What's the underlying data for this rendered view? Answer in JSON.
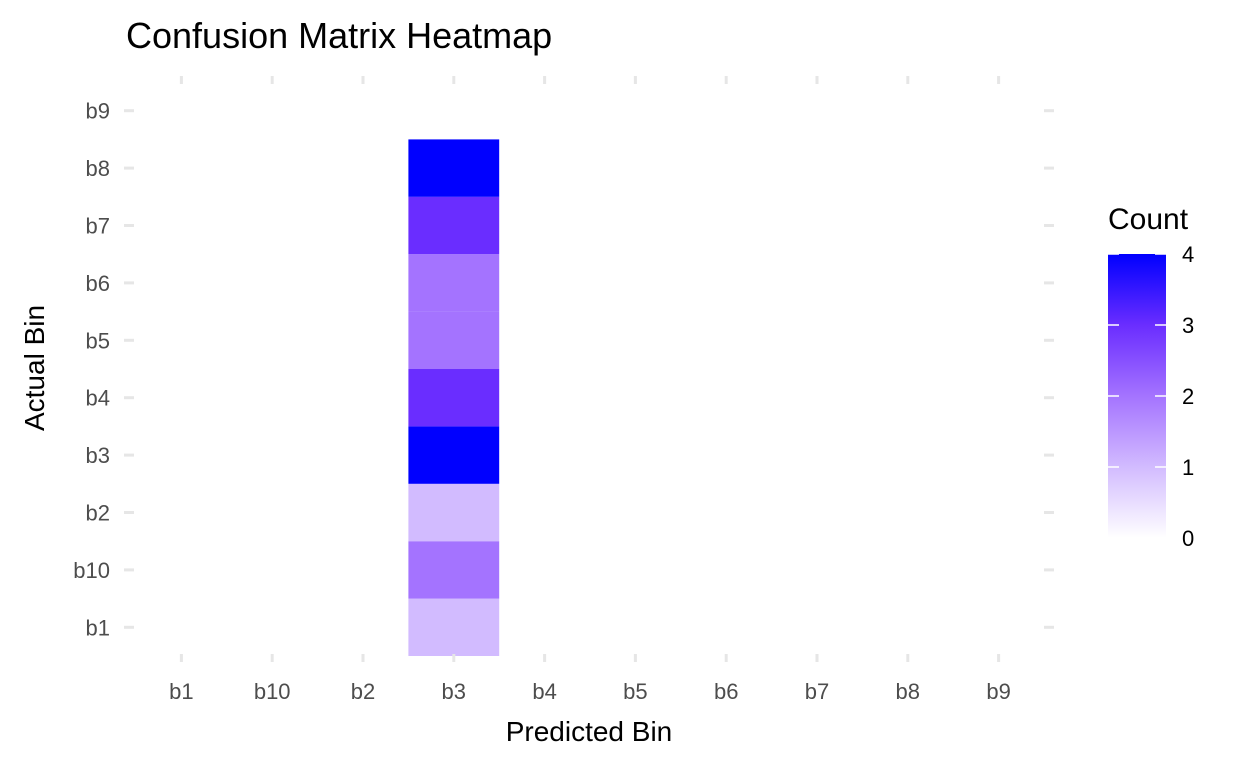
{
  "chart_data": {
    "type": "heatmap",
    "title": "Confusion Matrix Heatmap",
    "xlabel": "Predicted Bin",
    "ylabel": "Actual Bin",
    "x_categories": [
      "b1",
      "b10",
      "b2",
      "b3",
      "b4",
      "b5",
      "b6",
      "b7",
      "b8",
      "b9"
    ],
    "y_categories": [
      "b1",
      "b10",
      "b2",
      "b3",
      "b4",
      "b5",
      "b6",
      "b7",
      "b8",
      "b9"
    ],
    "cells": [
      {
        "x": "b3",
        "y": "b1",
        "value": 1
      },
      {
        "x": "b3",
        "y": "b10",
        "value": 2
      },
      {
        "x": "b3",
        "y": "b2",
        "value": 1
      },
      {
        "x": "b3",
        "y": "b3",
        "value": 4
      },
      {
        "x": "b3",
        "y": "b4",
        "value": 3
      },
      {
        "x": "b3",
        "y": "b5",
        "value": 2
      },
      {
        "x": "b3",
        "y": "b6",
        "value": 2
      },
      {
        "x": "b3",
        "y": "b7",
        "value": 3
      },
      {
        "x": "b3",
        "y": "b8",
        "value": 4
      }
    ],
    "color_low": "#ffffff",
    "color_high": "#0000ff",
    "legend": {
      "title": "Count",
      "breaks": [
        0,
        1,
        2,
        3,
        4
      ],
      "range": [
        0,
        4
      ],
      "placement": "right"
    },
    "grid": false
  }
}
